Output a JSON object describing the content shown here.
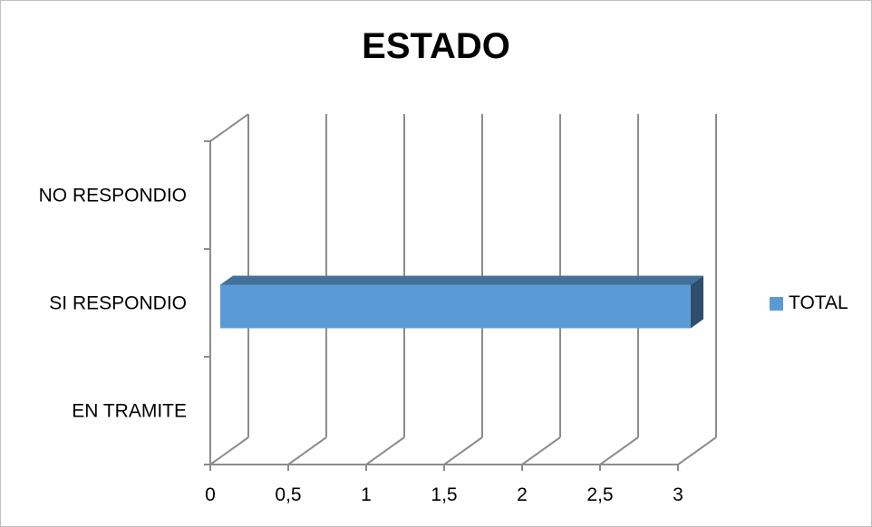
{
  "chart_data": {
    "type": "bar",
    "orientation": "horizontal",
    "title": "ESTADO",
    "categories": [
      "EN TRAMITE",
      "SI RESPONDIO",
      "NO RESPONDIO"
    ],
    "series": [
      {
        "name": "TOTAL",
        "values": [
          0,
          3,
          0
        ],
        "color": "#5b9bd5"
      }
    ],
    "x_ticks": [
      "0",
      "0,5",
      "1",
      "1,5",
      "2",
      "2,5",
      "3"
    ],
    "xlim": [
      0,
      3
    ],
    "grid": true,
    "legend_position": "right",
    "style": "3d"
  }
}
